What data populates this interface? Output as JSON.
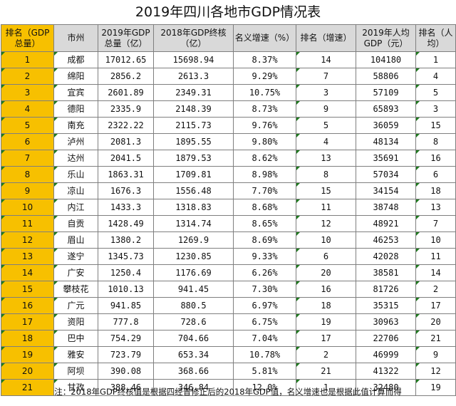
{
  "title": "2019年四川各地市GDP情况表",
  "headers": {
    "rank": "排名（GDP总量）",
    "city": "市州",
    "gdp2019": "2019年GDP总量（亿）",
    "gdp2018": "2018年GDP终核（亿）",
    "growth": "名义增速（%）",
    "growth_rank": "排名（增速）",
    "per_capita": "2019年人均GDP（元）",
    "per_capita_rank": "排名（人均）"
  },
  "rows": [
    {
      "rank": "1",
      "city": "成都",
      "gdp2019": "17012.65",
      "gdp2018": "15698.94",
      "growth": "8.37%",
      "growth_rank": "14",
      "per_capita": "104180",
      "per_capita_rank": "1"
    },
    {
      "rank": "2",
      "city": "绵阳",
      "gdp2019": "2856.2",
      "gdp2018": "2613.3",
      "growth": "9.29%",
      "growth_rank": "7",
      "per_capita": "58806",
      "per_capita_rank": "4"
    },
    {
      "rank": "3",
      "city": "宜宾",
      "gdp2019": "2601.89",
      "gdp2018": "2349.31",
      "growth": "10.75%",
      "growth_rank": "3",
      "per_capita": "57109",
      "per_capita_rank": "5"
    },
    {
      "rank": "4",
      "city": "德阳",
      "gdp2019": "2335.9",
      "gdp2018": "2148.39",
      "growth": "8.73%",
      "growth_rank": "9",
      "per_capita": "65893",
      "per_capita_rank": "3"
    },
    {
      "rank": "5",
      "city": "南充",
      "gdp2019": "2322.22",
      "gdp2018": "2115.73",
      "growth": "9.76%",
      "growth_rank": "5",
      "per_capita": "36059",
      "per_capita_rank": "15"
    },
    {
      "rank": "6",
      "city": "泸州",
      "gdp2019": "2081.3",
      "gdp2018": "1895.55",
      "growth": "9.80%",
      "growth_rank": "4",
      "per_capita": "48134",
      "per_capita_rank": "8"
    },
    {
      "rank": "7",
      "city": "达州",
      "gdp2019": "2041.5",
      "gdp2018": "1879.53",
      "growth": "8.62%",
      "growth_rank": "13",
      "per_capita": "35691",
      "per_capita_rank": "16"
    },
    {
      "rank": "8",
      "city": "乐山",
      "gdp2019": "1863.31",
      "gdp2018": "1709.81",
      "growth": "8.98%",
      "growth_rank": "8",
      "per_capita": "57034",
      "per_capita_rank": "6"
    },
    {
      "rank": "9",
      "city": "凉山",
      "gdp2019": "1676.3",
      "gdp2018": "1556.48",
      "growth": "7.70%",
      "growth_rank": "15",
      "per_capita": "34154",
      "per_capita_rank": "18"
    },
    {
      "rank": "10",
      "city": "内江",
      "gdp2019": "1433.3",
      "gdp2018": "1318.83",
      "growth": "8.68%",
      "growth_rank": "11",
      "per_capita": "38748",
      "per_capita_rank": "13"
    },
    {
      "rank": "11",
      "city": "自贡",
      "gdp2019": "1428.49",
      "gdp2018": "1314.74",
      "growth": "8.65%",
      "growth_rank": "12",
      "per_capita": "48921",
      "per_capita_rank": "7"
    },
    {
      "rank": "12",
      "city": "眉山",
      "gdp2019": "1380.2",
      "gdp2018": "1269.9",
      "growth": "8.69%",
      "growth_rank": "10",
      "per_capita": "46253",
      "per_capita_rank": "10"
    },
    {
      "rank": "13",
      "city": "遂宁",
      "gdp2019": "1345.73",
      "gdp2018": "1230.85",
      "growth": "9.33%",
      "growth_rank": "6",
      "per_capita": "42028",
      "per_capita_rank": "11"
    },
    {
      "rank": "14",
      "city": "广安",
      "gdp2019": "1250.4",
      "gdp2018": "1176.69",
      "growth": "6.26%",
      "growth_rank": "20",
      "per_capita": "38581",
      "per_capita_rank": "14"
    },
    {
      "rank": "15",
      "city": "攀枝花",
      "gdp2019": "1010.13",
      "gdp2018": "941.45",
      "growth": "7.30%",
      "growth_rank": "16",
      "per_capita": "81726",
      "per_capita_rank": "2"
    },
    {
      "rank": "16",
      "city": "广元",
      "gdp2019": "941.85",
      "gdp2018": "880.5",
      "growth": "6.97%",
      "growth_rank": "18",
      "per_capita": "35315",
      "per_capita_rank": "17"
    },
    {
      "rank": "17",
      "city": "资阳",
      "gdp2019": "777.8",
      "gdp2018": "728.6",
      "growth": "6.75%",
      "growth_rank": "19",
      "per_capita": "30963",
      "per_capita_rank": "20"
    },
    {
      "rank": "18",
      "city": "巴中",
      "gdp2019": "754.29",
      "gdp2018": "704.66",
      "growth": "7.04%",
      "growth_rank": "17",
      "per_capita": "22706",
      "per_capita_rank": "21"
    },
    {
      "rank": "19",
      "city": "雅安",
      "gdp2019": "723.79",
      "gdp2018": "653.34",
      "growth": "10.78%",
      "growth_rank": "2",
      "per_capita": "46999",
      "per_capita_rank": "9"
    },
    {
      "rank": "20",
      "city": "阿坝",
      "gdp2019": "390.08",
      "gdp2018": "368.66",
      "growth": "5.81%",
      "growth_rank": "21",
      "per_capita": "41322",
      "per_capita_rank": "12"
    },
    {
      "rank": "21",
      "city": "甘孜",
      "gdp2019": "388.46",
      "gdp2018": "346.84",
      "growth": "12.0%",
      "growth_rank": "1",
      "per_capita": "32480",
      "per_capita_rank": "19"
    }
  ],
  "note": "注：2018年GDP终核值是根据四经普修正后的2018年GDP值，名义增速也是根据此值计算而得",
  "colors": {
    "rank_column": "#f7c000",
    "header_gray": "#d9d9d9",
    "corner_marker": "#1e7a1e"
  }
}
